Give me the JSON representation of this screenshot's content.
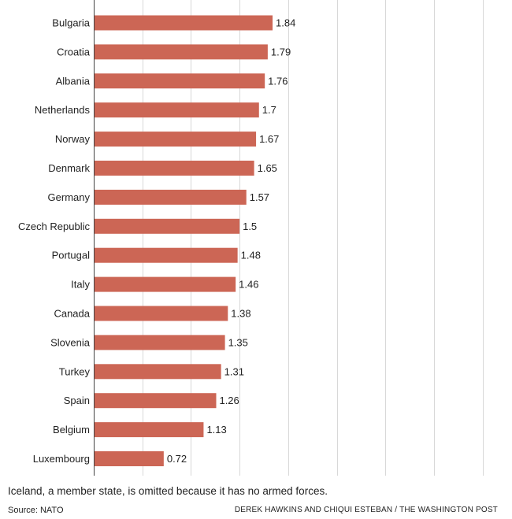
{
  "chart_data": {
    "type": "bar",
    "orientation": "horizontal",
    "categories": [
      "Bulgaria",
      "Croatia",
      "Albania",
      "Netherlands",
      "Norway",
      "Denmark",
      "Germany",
      "Czech Republic",
      "Portugal",
      "Italy",
      "Canada",
      "Slovenia",
      "Turkey",
      "Spain",
      "Belgium",
      "Luxembourg"
    ],
    "values": [
      1.84,
      1.79,
      1.76,
      1.7,
      1.67,
      1.65,
      1.57,
      1.5,
      1.48,
      1.46,
      1.38,
      1.35,
      1.31,
      1.26,
      1.13,
      0.72
    ],
    "value_labels": [
      "1.84",
      "1.79",
      "1.76",
      "1.7",
      "1.67",
      "1.65",
      "1.57",
      "1.5",
      "1.48",
      "1.46",
      "1.38",
      "1.35",
      "1.31",
      "1.26",
      "1.13",
      "0.72"
    ],
    "xlim": [
      0,
      4.3
    ],
    "grid_step": 0.5,
    "grid": true,
    "title": "",
    "xlabel": "",
    "ylabel": "",
    "bar_color": "#cc6655",
    "grid_color": "#d8d8d8"
  },
  "note": "Iceland, a member state, is omitted because it has no armed forces.",
  "source": "Source: NATO",
  "credit": "DEREK HAWKINS AND CHIQUI ESTEBAN / THE WASHINGTON POST"
}
